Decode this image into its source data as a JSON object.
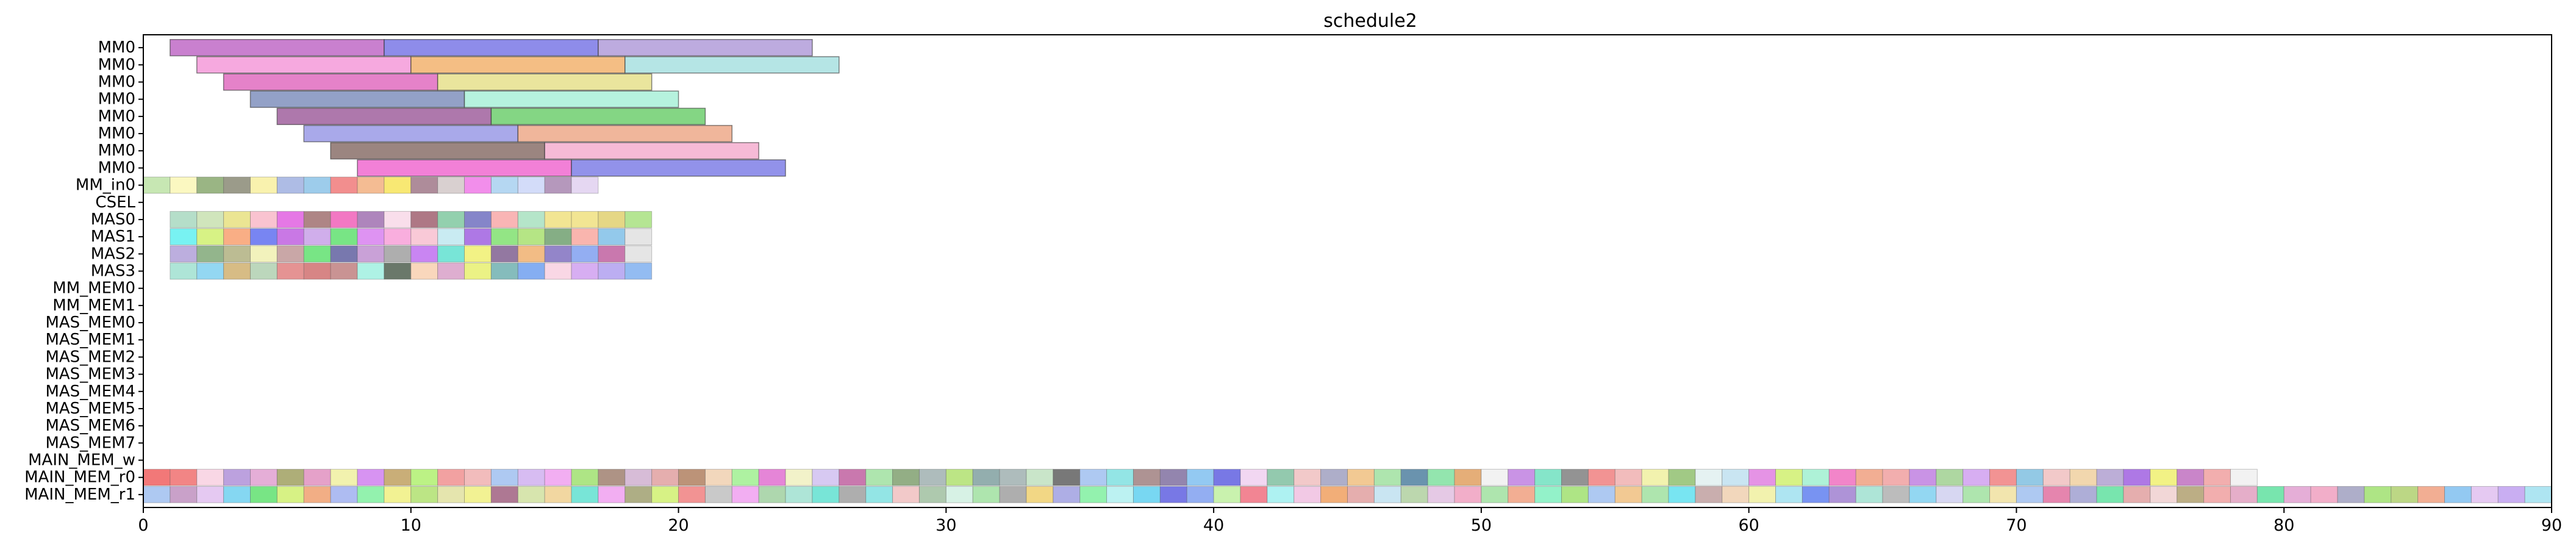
{
  "chart_data": {
    "type": "gantt",
    "title": "schedule2",
    "xlim": [
      0,
      90
    ],
    "x_ticks": [
      0,
      10,
      20,
      30,
      40,
      50,
      60,
      70,
      80,
      90
    ],
    "rows": [
      "MM0",
      "MM0",
      "MM0",
      "MM0",
      "MM0",
      "MM0",
      "MM0",
      "MM0",
      "MM_in0",
      "CSEL",
      "MAS0",
      "MAS1",
      "MAS2",
      "MAS3",
      "MM_MEM0",
      "MM_MEM1",
      "MAS_MEM0",
      "MAS_MEM1",
      "MAS_MEM2",
      "MAS_MEM3",
      "MAS_MEM4",
      "MAS_MEM5",
      "MAS_MEM6",
      "MAS_MEM7",
      "MAIN_MEM_w",
      "MAIN_MEM_r0",
      "MAIN_MEM_r1"
    ],
    "long_tasks": [
      {
        "row": 0,
        "start": 1,
        "end": 9,
        "color": "#c06ac7"
      },
      {
        "row": 0,
        "start": 9,
        "end": 17,
        "color": "#7a78e6"
      },
      {
        "row": 0,
        "start": 17,
        "end": 25,
        "color": "#b19cd9"
      },
      {
        "row": 1,
        "start": 2,
        "end": 10,
        "color": "#f49ad9"
      },
      {
        "row": 1,
        "start": 10,
        "end": 18,
        "color": "#f2b36e"
      },
      {
        "row": 1,
        "start": 18,
        "end": 26,
        "color": "#a8e0e0"
      },
      {
        "row": 2,
        "start": 3,
        "end": 11,
        "color": "#e06cbf"
      },
      {
        "row": 2,
        "start": 11,
        "end": 19,
        "color": "#e6e08c"
      },
      {
        "row": 3,
        "start": 4,
        "end": 12,
        "color": "#8090bd"
      },
      {
        "row": 3,
        "start": 12,
        "end": 20,
        "color": "#a9f0d8"
      },
      {
        "row": 4,
        "start": 5,
        "end": 13,
        "color": "#a0609e"
      },
      {
        "row": 4,
        "start": 13,
        "end": 21,
        "color": "#6fcf6f"
      },
      {
        "row": 5,
        "start": 6,
        "end": 14,
        "color": "#9a9ae6"
      },
      {
        "row": 5,
        "start": 14,
        "end": 22,
        "color": "#eda98a"
      },
      {
        "row": 6,
        "start": 7,
        "end": 15,
        "color": "#8a706a"
      },
      {
        "row": 6,
        "start": 15,
        "end": 23,
        "color": "#f5aecf"
      },
      {
        "row": 7,
        "start": 8,
        "end": 16,
        "color": "#f06ad0"
      },
      {
        "row": 7,
        "start": 16,
        "end": 24,
        "color": "#7f7fe6"
      }
    ],
    "unit_rows": [
      {
        "row": 8,
        "start": 0,
        "colors": [
          "#bde3a6",
          "#faf7b6",
          "#88a86e",
          "#8a8a76",
          "#f8f0a0",
          "#a0b0e0",
          "#8cc3e8",
          "#f07a7a",
          "#f2b080",
          "#f7e45a",
          "#a07888",
          "#d2c8c8",
          "#f07ae8",
          "#a8d0f0",
          "#cbd6f8",
          "#a886b0",
          "#e0d0f0"
        ]
      },
      {
        "row": 10,
        "start": 1,
        "colors": [
          "#a8d8c0",
          "#c8e0b0",
          "#e8e080",
          "#f8b8c8",
          "#e060e0",
          "#a07070",
          "#f060b8",
          "#a070b0",
          "#f8d8e8",
          "#a06070",
          "#80c8a0",
          "#7070c0",
          "#f8a8a8",
          "#a8e0c0",
          "#f0e080",
          "#f0e080",
          "#e0d070",
          "#a8e080"
        ]
      },
      {
        "row": 11,
        "start": 1,
        "colors": [
          "#60f0f0",
          "#d0f070",
          "#f8a070",
          "#6070f0",
          "#c060e0",
          "#c8a0e8",
          "#60e070",
          "#d880f0",
          "#f8a0d8",
          "#f8c0d0",
          "#c0e8f0",
          "#a060e0",
          "#80e070",
          "#a8e070",
          "#70a070",
          "#f8a8a0",
          "#80c0e8",
          "#e0e0e0"
        ]
      },
      {
        "row": 12,
        "start": 1,
        "colors": [
          "#b0a0d8",
          "#80a878",
          "#b0b080",
          "#f0f0b0",
          "#c09898",
          "#60e070",
          "#6060a0",
          "#c090d0",
          "#a0a0a0",
          "#c070f0",
          "#60e0d0",
          "#f0f070",
          "#806090",
          "#f0b070",
          "#8070c0",
          "#80a0f0",
          "#c060a0",
          "#e0e0e0"
        ]
      },
      {
        "row": 13,
        "start": 1,
        "colors": [
          "#a0e0d0",
          "#80d0f0",
          "#d0b070",
          "#b0d0b0",
          "#e08080",
          "#d07070",
          "#c08080",
          "#a0f0e0",
          "#506050",
          "#f8d0b0",
          "#d8a0c8",
          "#e8f070",
          "#70b0b0",
          "#70a0f0",
          "#f8d0e0",
          "#d0a0f0",
          "#b0a0f0",
          "#80b0f0"
        ]
      },
      {
        "row": 25,
        "start": 0,
        "colors": [
          "#f06060",
          "#f07070",
          "#f8d0e0",
          "#b090d8",
          "#e0a0d0",
          "#a0a060",
          "#e090c0",
          "#f0f0a0",
          "#d080f0",
          "#c0a060",
          "#b0f070",
          "#f09090",
          "#f0b0b0",
          "#a0c0f0",
          "#d0b0f0",
          "#f0a0f0",
          "#a0e070",
          "#a08070",
          "#d0b0d0",
          "#e0a0a0",
          "#b08060",
          "#f0d0b0",
          "#a0f090",
          "#e070d0",
          "#f0f0c0",
          "#d0c0f0",
          "#c060a0",
          "#a0e0a0",
          "#80a070",
          "#a0b0b0",
          "#b0e070",
          "#80a0a0",
          "#a0b0b0",
          "#c0e0c0",
          "#606060",
          "#a0c0f0",
          "#80e0e0",
          "#a08080",
          "#8070a0",
          "#80c0f0",
          "#6060e0",
          "#f0d0f0",
          "#80c0a0",
          "#f0c0c0",
          "#a0a0c0",
          "#f0c080",
          "#a0e0a0",
          "#5080a0",
          "#80e0a0",
          "#e0a060",
          "#f0f0f0",
          "#c080e0",
          "#70e0c0",
          "#808080",
          "#f08080",
          "#f0b0b0",
          "#f0f0a0",
          "#90c070",
          "#e0f0f0",
          "#c0e0f0",
          "#e080e0",
          "#d0f070",
          "#a0f0d0",
          "#f070c0",
          "#f0a080",
          "#f0a0a0",
          "#c080e0",
          "#a0d090",
          "#d0a0f0",
          "#f08080",
          "#80c0e0",
          "#f0c0c0",
          "#f0d0a0",
          "#b0a0d0",
          "#a060e0",
          "#f0f070",
          "#c070c0",
          "#f0a0a0",
          "#f0f0f0"
        ]
      },
      {
        "row": 26,
        "start": 0,
        "colors": [
          "#a0c0f0",
          "#c090c0",
          "#e0c0f0",
          "#70d0f0",
          "#60e070",
          "#d0f070",
          "#f0a070",
          "#a0b0f0",
          "#80f0a0",
          "#f0f080",
          "#b0e070",
          "#e0e0a0",
          "#f0f080",
          "#a06080",
          "#d0e0a0",
          "#f0d090",
          "#60e0d0",
          "#f0a0f0",
          "#a0a070",
          "#d0f070",
          "#f08080",
          "#c0c0c0",
          "#f0a0f0",
          "#a0d0a0",
          "#a0e0d0",
          "#60e0d0",
          "#a0a0a0",
          "#80e0e0",
          "#f0c0c0",
          "#a0c0a0",
          "#d0f0e0",
          "#a0e0a0",
          "#a0a0a0",
          "#f0d070",
          "#a0a0e0",
          "#80f0a0",
          "#b0f0f0",
          "#60d0f0",
          "#6060e0",
          "#80a0f0",
          "#c0f0a0",
          "#f07080",
          "#a0f0f0",
          "#f0c0e0",
          "#f0a060",
          "#e0a0a0",
          "#c0e0f0",
          "#b0d0a0",
          "#e0c0e0",
          "#f0a0c0",
          "#a0e0a0",
          "#f0a080",
          "#80f0c0",
          "#a0e070",
          "#a0c0f0",
          "#f0c080",
          "#a0e0a0",
          "#60e0f0",
          "#c0a0a0",
          "#f0d0b0",
          "#f0f0a0",
          "#a0e0f0",
          "#6080f0",
          "#a080d0",
          "#a0e0d0",
          "#b0b0b0",
          "#80d0f0",
          "#d0d0f0",
          "#a0e0a0",
          "#f0e0a0",
          "#a0c0f0",
          "#e070a0",
          "#a0a0d0",
          "#60e0a0",
          "#e0a0a0",
          "#f0d0d0",
          "#b0a070",
          "#f0a0a0",
          "#e0a0c0",
          "#60e0a0",
          "#e0a0d0",
          "#f0a0c0",
          "#a0a0c0",
          "#a0e070",
          "#b0d070",
          "#f0a080",
          "#80c0f0",
          "#e0c0f0",
          "#c0a0f0",
          "#a0e0f0"
        ]
      }
    ]
  }
}
